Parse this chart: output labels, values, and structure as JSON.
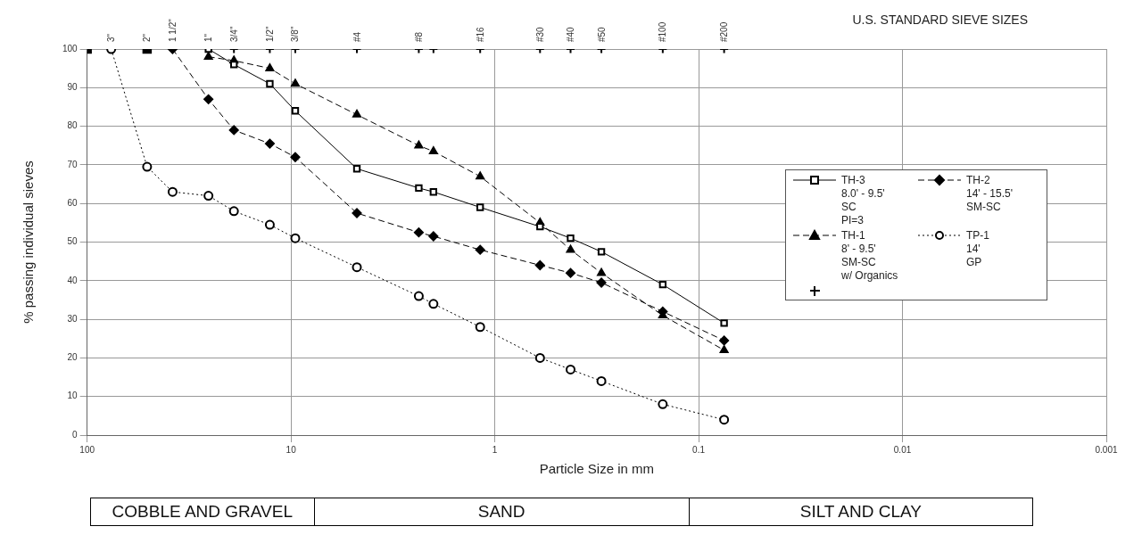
{
  "chart_data": {
    "type": "line",
    "xlabel": "Particle Size in mm",
    "ylabel": "% passing individual sieves",
    "log": "x",
    "grid": true,
    "legend": "right",
    "xlim": [
      100,
      0.001
    ],
    "xticks": [
      100,
      10,
      1,
      0.1,
      0.01,
      0.001
    ],
    "ylim": [
      0,
      100
    ],
    "yticks": [
      0,
      10,
      20,
      30,
      40,
      50,
      60,
      70,
      80,
      90,
      100
    ],
    "series": [
      {
        "name": "TH-3\n8.0' - 9.5'\nSC\nPI=3",
        "color": "#000000",
        "marker": "square",
        "line_style": "solid",
        "x": [
          25.4,
          19.05,
          12.7,
          9.525,
          4.75,
          2.36,
          2.0,
          1.18,
          0.6,
          0.425,
          0.3,
          0.15,
          0.075
        ],
        "values": [
          100,
          96,
          91,
          84,
          69,
          64,
          63,
          59,
          54,
          51,
          47.5,
          39,
          29
        ]
      },
      {
        "name": "TH-2\n14' - 15.5'\nSM-SC",
        "color": "#000000",
        "marker": "diamond",
        "line_style": "dashed",
        "x": [
          38.1,
          25.4,
          19.05,
          12.7,
          9.525,
          4.75,
          2.36,
          2.0,
          1.18,
          0.6,
          0.425,
          0.3,
          0.15,
          0.075
        ],
        "values": [
          100,
          87,
          79,
          75.5,
          72,
          57.5,
          52.5,
          51.5,
          48,
          44,
          42,
          39.5,
          32,
          24.5
        ]
      },
      {
        "name": "TH-1\n8' - 9.5'\nSM-SC\nw/ Organics",
        "color": "#000000",
        "marker": "triangle",
        "line_style": "dashed",
        "x": [
          25.4,
          19.05,
          12.7,
          9.525,
          4.75,
          2.36,
          2.0,
          1.18,
          0.6,
          0.425,
          0.3,
          0.15,
          0.075
        ],
        "values": [
          98,
          97,
          95,
          91,
          83,
          75,
          73.5,
          67,
          55,
          48,
          42,
          31,
          22
        ]
      },
      {
        "name": "TP-1\n14'\nGP",
        "color": "#000000",
        "marker": "circle",
        "line_style": "dotted",
        "x": [
          76.2,
          50.8,
          38.1,
          25.4,
          19.05,
          12.7,
          9.525,
          4.75,
          2.36,
          2.0,
          1.18,
          0.6,
          0.425,
          0.3,
          0.15,
          0.075
        ],
        "values": [
          100,
          69.5,
          63,
          62,
          58,
          54.5,
          51,
          43.5,
          36,
          34,
          28,
          20,
          17,
          14,
          8,
          4
        ]
      },
      {
        "type": "scatter",
        "color": "#000000",
        "marker": "cross",
        "x": [
          19.05,
          12.7,
          9.525,
          4.75,
          2.36,
          2.0,
          1.18,
          0.6,
          0.425,
          0.3,
          0.15,
          0.075
        ],
        "values": [
          100,
          100,
          100,
          100,
          100,
          100,
          100,
          100,
          100,
          100,
          100,
          100
        ]
      },
      {
        "type": "scatter",
        "color": "#000000",
        "marker": "square",
        "x": [
          100,
          50.8
        ],
        "values": [
          100,
          100
        ]
      }
    ],
    "annotations": [
      "U.S. STANDARD SIEVE SIZES",
      {
        "text": "3\"",
        "x": 76.2,
        "y": 100
      },
      {
        "text": "2\"",
        "x": 50.8,
        "y": 100
      },
      {
        "text": "1 1/2\"",
        "x": 38.1,
        "y": 100
      },
      {
        "text": "1\"",
        "x": 25.4,
        "y": 100
      },
      {
        "text": "3/4\"",
        "x": 19.05,
        "y": 100
      },
      {
        "text": "1/2\"",
        "x": 12.7,
        "y": 100
      },
      {
        "text": "3/8\"",
        "x": 9.525,
        "y": 100
      },
      {
        "text": "#4",
        "x": 4.75,
        "y": 100
      },
      {
        "text": "#8",
        "x": 2.36,
        "y": 100
      },
      {
        "text": "#16",
        "x": 1.18,
        "y": 100
      },
      {
        "text": "#30",
        "x": 0.6,
        "y": 100
      },
      {
        "text": "#40",
        "x": 0.425,
        "y": 100
      },
      {
        "text": "#50",
        "x": 0.3,
        "y": 100
      },
      {
        "text": "#100",
        "x": 0.15,
        "y": 100
      },
      {
        "text": "#200",
        "x": 0.075,
        "y": 100
      },
      "COBBLE AND GRAVEL",
      "SAND",
      "SILT AND CLAY"
    ]
  }
}
